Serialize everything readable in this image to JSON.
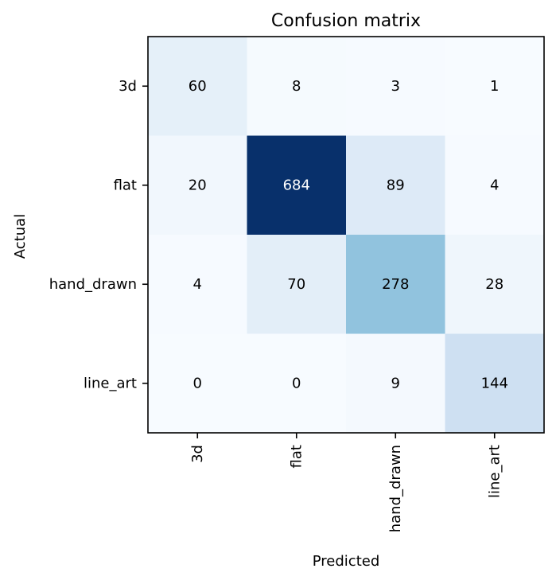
{
  "chart_data": {
    "type": "heatmap",
    "title": "Confusion matrix",
    "xlabel": "Predicted",
    "ylabel": "Actual",
    "x_categories": [
      "3d",
      "flat",
      "hand_drawn",
      "line_art"
    ],
    "y_categories": [
      "3d",
      "flat",
      "hand_drawn",
      "line_art"
    ],
    "values": [
      [
        60,
        8,
        3,
        1
      ],
      [
        20,
        684,
        89,
        4
      ],
      [
        4,
        70,
        278,
        28
      ],
      [
        0,
        0,
        9,
        144
      ]
    ],
    "colormap": "Blues",
    "colormap_stops": [
      "#f7fbff",
      "#deebf7",
      "#c6dbef",
      "#9ecae1",
      "#6baed6",
      "#4292c6",
      "#2171b5",
      "#08519c",
      "#08306b"
    ],
    "value_range": [
      0,
      684
    ],
    "text_color_light": "#ffffff",
    "text_color_dark": "#000000",
    "x_tick_rotation": "vertical",
    "colorbar": false,
    "grid": false
  }
}
